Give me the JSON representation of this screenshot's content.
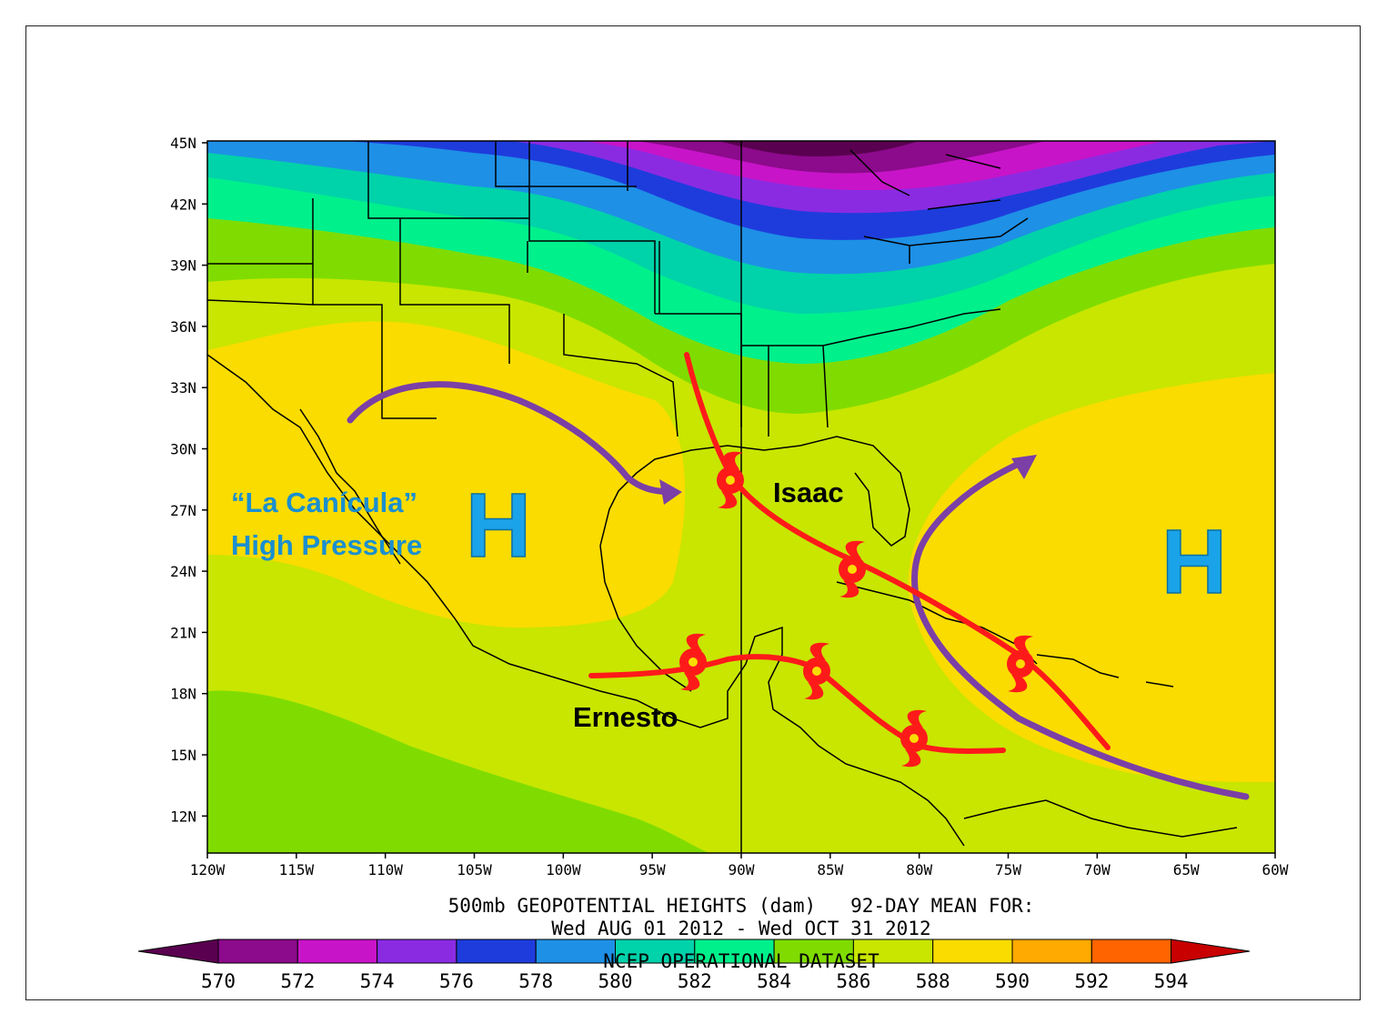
{
  "map": {
    "lat_labels": [
      "45N",
      "42N",
      "39N",
      "36N",
      "33N",
      "30N",
      "27N",
      "24N",
      "21N",
      "18N",
      "15N",
      "12N"
    ],
    "lon_labels": [
      "120W",
      "115W",
      "110W",
      "105W",
      "100W",
      "95W",
      "90W",
      "85W",
      "80W",
      "75W",
      "70W",
      "65W",
      "60W"
    ],
    "caption_line1": "500mb GEOPOTENTIAL HEIGHTS (dam)   92-DAY MEAN FOR:",
    "caption_line2": "Wed AUG 01 2012 - Wed OCT 31 2012",
    "caption_line3": "NCEP OPERATIONAL DATASET",
    "colorbar": {
      "labels": [
        "570",
        "572",
        "574",
        "576",
        "578",
        "580",
        "582",
        "584",
        "586",
        "588",
        "590",
        "592",
        "594"
      ],
      "colors": [
        "#5a0050",
        "#8c0a8c",
        "#c814c8",
        "#8a2be2",
        "#1e3cdc",
        "#1e90e6",
        "#00d2aa",
        "#00f08c",
        "#80dc00",
        "#c8e600",
        "#fadc00",
        "#ffaa00",
        "#ff6400",
        "#c80000"
      ]
    }
  },
  "annotations": {
    "high_west_letter": "H",
    "high_west_label_1": "“La Canícula”",
    "high_west_label_2": "High Pressure",
    "high_east_letter": "H",
    "storm_isaac": "Isaac",
    "storm_ernesto": "Ernesto",
    "colors": {
      "track": "#ff1a1a",
      "steering": "#7b3fa6",
      "high": "#1aa3e8"
    }
  }
}
